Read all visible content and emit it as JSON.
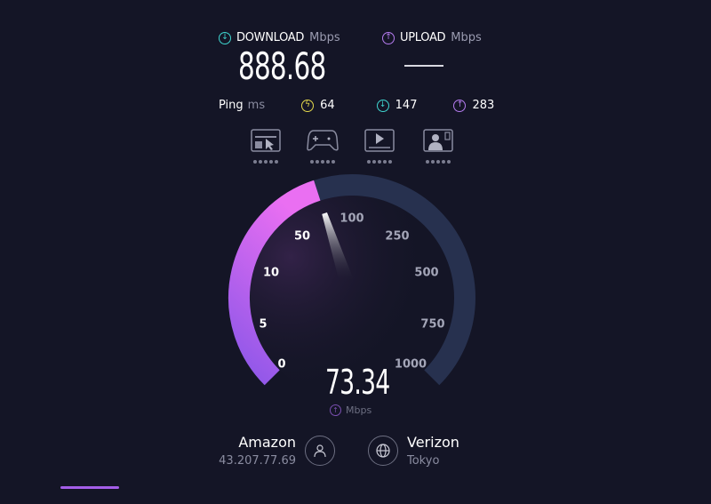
{
  "download": {
    "label": "DOWNLOAD",
    "unit": "Mbps",
    "value": "888.68",
    "icon": "arrow-down-circle-icon",
    "color": "#3fd6d0"
  },
  "upload": {
    "label": "UPLOAD",
    "unit": "Mbps",
    "value": "—",
    "icon": "arrow-up-circle-icon",
    "color": "#b57cf0"
  },
  "ping": {
    "label": "Ping",
    "unit": "ms",
    "idle": "64",
    "down": "147",
    "up": "283",
    "idle_color": "#e5d94c"
  },
  "categories": [
    "web-browsing-icon",
    "gaming-icon",
    "video-streaming-icon",
    "video-chat-icon"
  ],
  "gauge": {
    "value": "73.34",
    "unit": "Mbps",
    "phase": "upload",
    "ticks": [
      "0",
      "5",
      "10",
      "50",
      "100",
      "250",
      "500",
      "750",
      "1000"
    ],
    "fill_colors": [
      "#8b56e8",
      "#ea6ff2"
    ],
    "track_color": "#27314f"
  },
  "provider": {
    "name": "Amazon",
    "ip": "43.207.77.69"
  },
  "server": {
    "name": "Verizon",
    "location": "Tokyo"
  }
}
